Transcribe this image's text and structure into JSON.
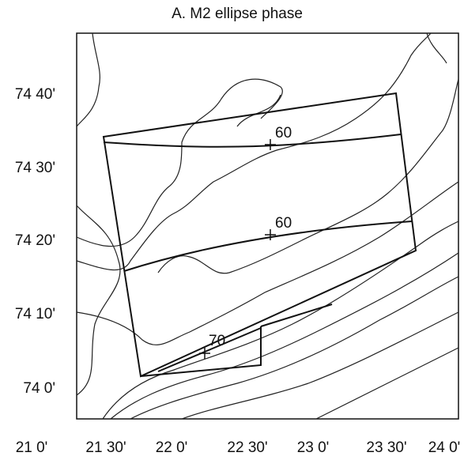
{
  "title": "A. M2 ellipse phase",
  "x_ticks": [
    "21 0'",
    "21 30'",
    "22 0'",
    "22 30'",
    "23 0'",
    "23 30'",
    "24 0'"
  ],
  "y_ticks": [
    "74 40'",
    "74 30'",
    "74 20'",
    "74 10'",
    "74 0'"
  ],
  "contour_labels": [
    "60",
    "60",
    "70"
  ]
}
